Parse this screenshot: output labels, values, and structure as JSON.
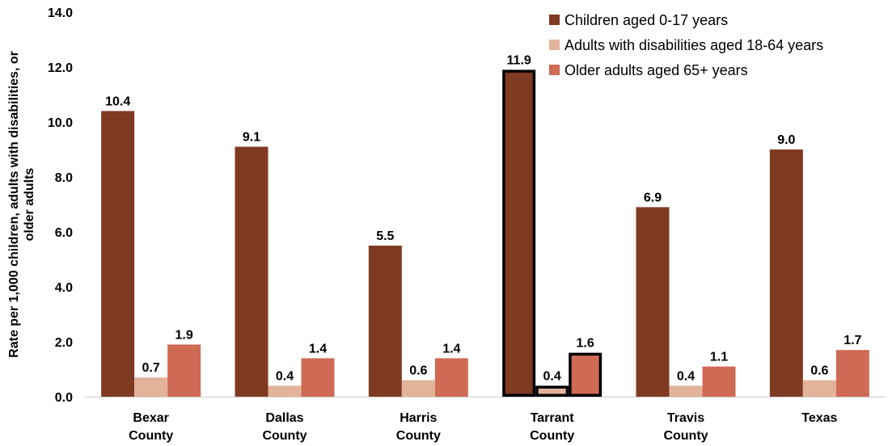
{
  "chart_data": {
    "type": "bar",
    "categories": [
      [
        "Bexar",
        "County"
      ],
      [
        "Dallas",
        "County"
      ],
      [
        "Harris",
        "County"
      ],
      [
        "Tarrant",
        "County"
      ],
      [
        "Travis",
        "County"
      ],
      [
        "Texas"
      ]
    ],
    "series": [
      {
        "name": "Children aged 0-17 years",
        "color": "#7f3a22",
        "values": [
          10.4,
          9.1,
          5.5,
          11.9,
          6.9,
          9.0
        ]
      },
      {
        "name": "Adults with disabilities aged 18-64 years",
        "color": "#e1b39a",
        "values": [
          0.7,
          0.4,
          0.6,
          0.4,
          0.4,
          0.6
        ]
      },
      {
        "name": "Older adults aged 65+ years",
        "color": "#cf6a55",
        "values": [
          1.9,
          1.4,
          1.4,
          1.6,
          1.1,
          1.7
        ]
      }
    ],
    "data_labels": [
      [
        "10.4",
        "9.1",
        "5.5",
        "11.9",
        "6.9",
        "9.0"
      ],
      [
        "0.7",
        "0.4",
        "0.6",
        "0.4",
        "0.4",
        "0.6"
      ],
      [
        "1.9",
        "1.4",
        "1.4",
        "1.6",
        "1.1",
        "1.7"
      ]
    ],
    "highlighted_category": "Tarrant County",
    "ylabel": [
      "Rate per 1,000 children, adults with disabilities, or",
      "older adults"
    ],
    "ylim": [
      0,
      14
    ],
    "yticks": [
      "0.0",
      "2.0",
      "4.0",
      "6.0",
      "8.0",
      "10.0",
      "12.0",
      "14.0"
    ],
    "grid": false,
    "legend_position": "top-right"
  }
}
